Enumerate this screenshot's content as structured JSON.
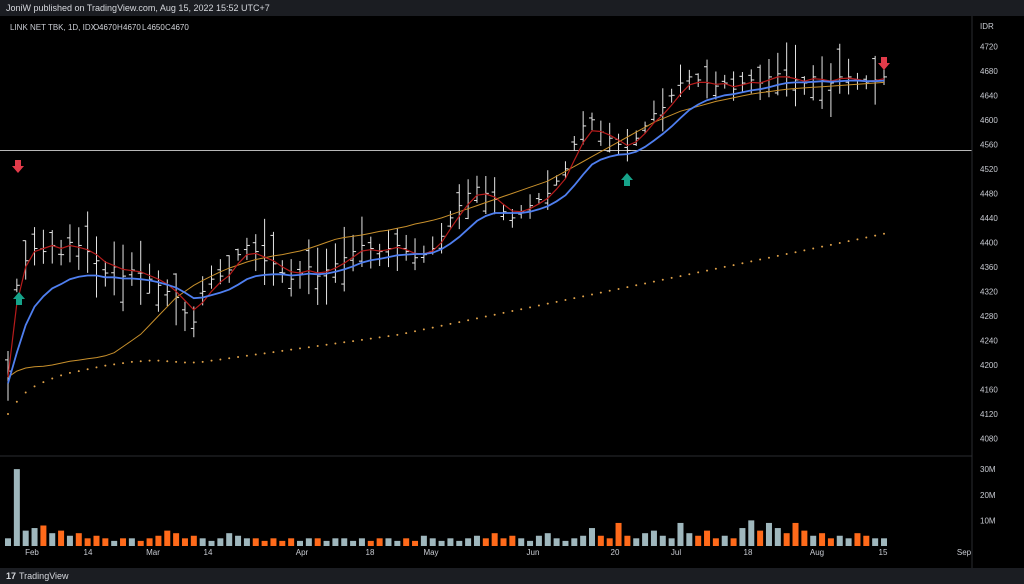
{
  "publisher_line": "JoniW published on TradingView.com, Aug 15, 2022 15:52 UTC+7",
  "footer_brand": "TradingView",
  "footer_logo_glyph": "17",
  "legend": {
    "symbol": "LINK NET TBK, 1D, IDX",
    "o_label": "O",
    "o_value": "4670",
    "h_label": "H",
    "h_value": "4670",
    "l_label": "L",
    "l_value": "4650",
    "c_label": "C",
    "c_value": "4670"
  },
  "currency": "IDR",
  "colors": {
    "background": "#000000",
    "price_bars": "#e6e6e6",
    "ema_fast": "#b71c1c",
    "ema_mid": "#4f7ff0",
    "ma_slow": "#c8902c",
    "ma_long_dots": "#e0a24a",
    "volume_up": "#9fb7bd",
    "volume_down": "#ff6a1a",
    "resistance_line": "#b8b8b8",
    "up_arrow": "#16a38a",
    "down_arrow": "#e23b4a"
  },
  "chart_data": {
    "type": "ohlc-bars",
    "y_ticks": [
      4720,
      4680,
      4640,
      4600,
      4560,
      4520,
      4480,
      4440,
      4400,
      4360,
      4320,
      4280,
      4240,
      4200,
      4160,
      4120,
      4080
    ],
    "ylim": [
      4058,
      4740
    ],
    "x_ticks": [
      "Feb",
      "14",
      "Mar",
      "14",
      "Apr",
      "18",
      "May",
      "Jun",
      "20",
      "Jul",
      "18",
      "Aug",
      "15",
      "Sep"
    ],
    "volume_ticks": [
      "30M",
      "20M",
      "10M"
    ],
    "resistance_level": 4550,
    "close_series": [
      4190,
      4330,
      4370,
      4390,
      4385,
      4395,
      4380,
      4400,
      4395,
      4385,
      4370,
      4350,
      4360,
      4345,
      4355,
      4350,
      4340,
      4330,
      4320,
      4310,
      4285,
      4270,
      4320,
      4340,
      4345,
      4355,
      4380,
      4395,
      4385,
      4370,
      4365,
      4350,
      4340,
      4350,
      4360,
      4345,
      4355,
      4365,
      4375,
      4385,
      4395,
      4390,
      4385,
      4390,
      4395,
      4385,
      4375,
      4380,
      4390,
      4410,
      4440,
      4460,
      4480,
      4490,
      4480,
      4470,
      4450,
      4440,
      4450,
      4460,
      4470,
      4480,
      4500,
      4520,
      4560,
      4590,
      4600,
      4580,
      4570,
      4560,
      4550,
      4570,
      4590,
      4610,
      4620,
      4640,
      4660,
      4670,
      4665,
      4660,
      4655,
      4660,
      4650,
      4660,
      4665,
      4660,
      4670,
      4675,
      4670,
      4665,
      4660,
      4670,
      4665,
      4660,
      4670,
      4670,
      4665,
      4660,
      4665,
      4670
    ],
    "ema_fast_series": [
      4180,
      4300,
      4360,
      4385,
      4390,
      4395,
      4390,
      4395,
      4392,
      4388,
      4380,
      4368,
      4362,
      4356,
      4354,
      4352,
      4346,
      4340,
      4332,
      4320,
      4305,
      4290,
      4302,
      4320,
      4335,
      4346,
      4365,
      4380,
      4382,
      4376,
      4370,
      4360,
      4352,
      4350,
      4354,
      4350,
      4352,
      4358,
      4366,
      4376,
      4386,
      4388,
      4386,
      4388,
      4392,
      4388,
      4382,
      4381,
      4386,
      4400,
      4422,
      4443,
      4462,
      4477,
      4479,
      4474,
      4462,
      4451,
      4450,
      4455,
      4463,
      4472,
      4487,
      4504,
      4534,
      4563,
      4582,
      4581,
      4575,
      4567,
      4558,
      4564,
      4578,
      4595,
      4608,
      4624,
      4642,
      4657,
      4661,
      4661,
      4658,
      4659,
      4654,
      4657,
      4661,
      4660,
      4665,
      4670,
      4670,
      4667,
      4663,
      4667,
      4666,
      4663,
      4667,
      4668,
      4666,
      4663,
      4664,
      4667
    ],
    "ema_mid_series": [
      4170,
      4220,
      4265,
      4295,
      4312,
      4325,
      4332,
      4340,
      4344,
      4346,
      4346,
      4343,
      4343,
      4341,
      4341,
      4340,
      4338,
      4335,
      4331,
      4326,
      4318,
      4309,
      4310,
      4314,
      4318,
      4323,
      4331,
      4340,
      4345,
      4347,
      4348,
      4348,
      4346,
      4347,
      4349,
      4348,
      4349,
      4352,
      4356,
      4361,
      4367,
      4371,
      4373,
      4376,
      4379,
      4380,
      4381,
      4381,
      4383,
      4389,
      4398,
      4409,
      4422,
      4435,
      4443,
      4448,
      4448,
      4448,
      4448,
      4450,
      4454,
      4459,
      4467,
      4477,
      4493,
      4511,
      4527,
      4535,
      4540,
      4543,
      4544,
      4548,
      4556,
      4566,
      4577,
      4589,
      4603,
      4616,
      4625,
      4632,
      4636,
      4640,
      4642,
      4645,
      4648,
      4650,
      4653,
      4657,
      4660,
      4661,
      4661,
      4662,
      4663,
      4662,
      4663,
      4664,
      4664,
      4663,
      4663,
      4664
    ],
    "ma_slow_series": [
      4180,
      4190,
      4195,
      4197,
      4198,
      4200,
      4203,
      4206,
      4208,
      4210,
      4212,
      4215,
      4220,
      4230,
      4240,
      4250,
      4265,
      4280,
      4295,
      4310,
      4320,
      4330,
      4338,
      4345,
      4352,
      4358,
      4363,
      4368,
      4372,
      4375,
      4378,
      4380,
      4383,
      4386,
      4390,
      4395,
      4400,
      4405,
      4408,
      4410,
      4412,
      4415,
      4418,
      4420,
      4423,
      4426,
      4430,
      4433,
      4436,
      4440,
      4445,
      4450,
      4455,
      4460,
      4465,
      4470,
      4475,
      4480,
      4485,
      4490,
      4495,
      4500,
      4508,
      4516,
      4524,
      4532,
      4540,
      4548,
      4556,
      4564,
      4572,
      4580,
      4588,
      4596,
      4602,
      4608,
      4614,
      4618,
      4622,
      4626,
      4630,
      4633,
      4636,
      4639,
      4642,
      4644,
      4646,
      4648,
      4650,
      4651,
      4652,
      4653,
      4654,
      4655,
      4656,
      4657,
      4658,
      4659,
      4660,
      4661
    ],
    "ma_long_series": [
      4120,
      4140,
      4155,
      4165,
      4172,
      4178,
      4183,
      4187,
      4190,
      4193,
      4196,
      4199,
      4201,
      4203,
      4205,
      4206,
      4207,
      4207,
      4206,
      4205,
      4204,
      4204,
      4205,
      4207,
      4209,
      4211,
      4213,
      4215,
      4217,
      4219,
      4221,
      4223,
      4225,
      4227,
      4229,
      4231,
      4233,
      4235,
      4237,
      4239,
      4241,
      4243,
      4245,
      4247,
      4249,
      4252,
      4255,
      4258,
      4261,
      4264,
      4267,
      4270,
      4273,
      4276,
      4279,
      4282,
      4285,
      4288,
      4291,
      4294,
      4297,
      4300,
      4303,
      4306,
      4309,
      4312,
      4315,
      4318,
      4321,
      4324,
      4327,
      4330,
      4333,
      4336,
      4339,
      4342,
      4345,
      4348,
      4351,
      4354,
      4357,
      4360,
      4363,
      4366,
      4369,
      4372,
      4375,
      4378,
      4381,
      4384,
      4387,
      4390,
      4393,
      4396,
      4399,
      4402,
      4405,
      4408,
      4411,
      4414
    ],
    "volume_series": [
      0.3,
      3.0,
      0.6,
      0.7,
      0.8,
      0.5,
      0.6,
      0.4,
      0.5,
      0.3,
      0.4,
      0.3,
      0.2,
      0.3,
      0.3,
      0.2,
      0.3,
      0.4,
      0.6,
      0.5,
      0.3,
      0.4,
      0.3,
      0.2,
      0.3,
      0.5,
      0.4,
      0.3,
      0.3,
      0.2,
      0.3,
      0.2,
      0.3,
      0.2,
      0.3,
      0.3,
      0.2,
      0.3,
      0.3,
      0.2,
      0.3,
      0.2,
      0.3,
      0.3,
      0.2,
      0.3,
      0.2,
      0.4,
      0.3,
      0.2,
      0.3,
      0.2,
      0.3,
      0.4,
      0.3,
      0.5,
      0.3,
      0.4,
      0.3,
      0.2,
      0.4,
      0.5,
      0.3,
      0.2,
      0.3,
      0.4,
      0.7,
      0.4,
      0.3,
      0.9,
      0.4,
      0.3,
      0.5,
      0.6,
      0.4,
      0.3,
      0.9,
      0.5,
      0.4,
      0.6,
      0.3,
      0.4,
      0.3,
      0.7,
      1.0,
      0.6,
      0.9,
      0.7,
      0.5,
      0.9,
      0.6,
      0.4,
      0.5,
      0.3,
      0.4,
      0.3,
      0.5,
      0.4,
      0.3,
      0.3
    ]
  }
}
